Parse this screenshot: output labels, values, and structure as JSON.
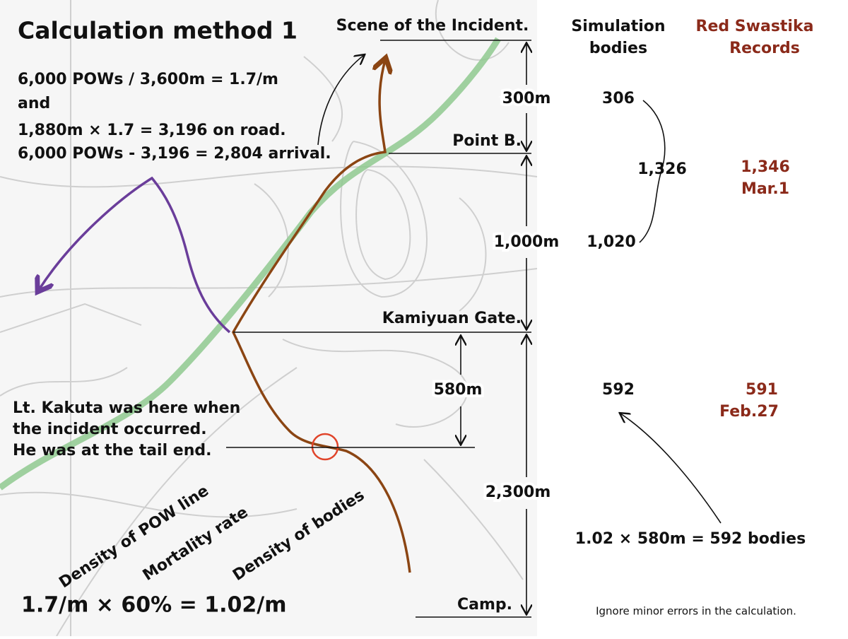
{
  "title": "Calculation method 1",
  "calc_lines": [
    "6,000 POWs / 3,600m = 1.7/m",
    "and",
    "1,880m × 1.7 = 3,196 on road.",
    "6,000 POWs - 3,196 = 2,804 arrival."
  ],
  "headers": {
    "simulation": [
      "Simulation",
      "bodies"
    ],
    "records": [
      "Red Swastika",
      "Records"
    ]
  },
  "places": {
    "scene": "Scene of the Incident.",
    "point_b": "Point B.",
    "gate": "Kamiyuan Gate.",
    "camp": "Camp."
  },
  "distances": {
    "d300": "300m",
    "d1000": "1,000m",
    "d580": "580m",
    "d2300": "2,300m"
  },
  "simulation": {
    "s306": "306",
    "s1326": "1,326",
    "s1020": "1,020",
    "s592": "592"
  },
  "records": {
    "r1346": "1,346",
    "r1346_date": "Mar.1",
    "r591": "591",
    "r591_date": "Feb.27"
  },
  "kakuta": [
    "Lt. Kakuta was here when",
    "the incident occurred.",
    "He was at the tail end."
  ],
  "rotated": [
    "Density of POW line",
    "Mortality rate",
    "Density of bodies"
  ],
  "formula": "1.7/m × 60% = 1.02/m",
  "bodies_formula": "1.02 × 580m = 592 bodies",
  "note": "Ignore minor errors in the calculation."
}
